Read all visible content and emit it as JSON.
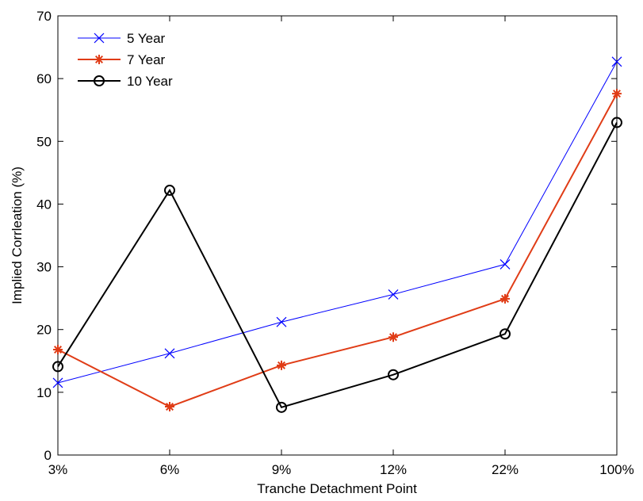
{
  "chart_data": {
    "type": "line",
    "categories": [
      "3%",
      "6%",
      "9%",
      "12%",
      "22%",
      "100%"
    ],
    "xlabel": "Tranche Detachment Point",
    "ylabel": "Implied Corrleation (%)",
    "ylim": [
      0,
      70
    ],
    "yticks": [
      0,
      10,
      20,
      30,
      40,
      50,
      60,
      70
    ],
    "grid": false,
    "legend_position": "top-left",
    "series": [
      {
        "name": "5  Year",
        "color": "#0000ff",
        "marker": "x",
        "values": [
          11.5,
          16.2,
          21.2,
          25.6,
          30.4,
          62.7
        ]
      },
      {
        "name": "7 Year",
        "color": "#e03c16",
        "marker": "star",
        "values": [
          16.8,
          7.7,
          14.3,
          18.8,
          24.9,
          57.6
        ]
      },
      {
        "name": "10  Year",
        "color": "#000000",
        "marker": "circle",
        "values": [
          14.1,
          42.2,
          7.6,
          12.8,
          19.3,
          53.0
        ]
      }
    ]
  }
}
